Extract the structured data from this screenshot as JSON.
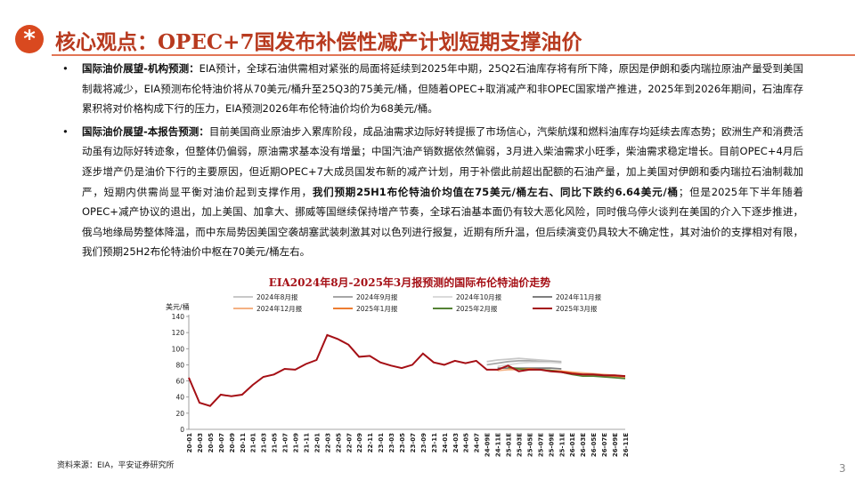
{
  "header": {
    "title": "核心观点：OPEC+7国发布补偿性减产计划短期支撑油价"
  },
  "bullets": [
    {
      "segments": [
        {
          "text": "国际油价展望-机构预测：",
          "bold": true
        },
        {
          "text": "EIA预计，全球石油供需相对紧张的局面将延续到2025年中期，25Q2石油库存将有所下降，原因是伊朗和委内瑞拉原油产量受到美国制裁将减少，EIA预测布伦特油价将从70美元/桶升至25Q3的75美元/桶，但随着OPEC+取消减产和非OPEC国家增产推进，2025年到2026年期间，石油库存累积将对价格构成下行的压力，EIA预测2026年布伦特油价均价为68美元/桶。",
          "bold": false
        }
      ]
    },
    {
      "segments": [
        {
          "text": "国际油价展望-本报告预测：",
          "bold": true
        },
        {
          "text": "目前美国商业原油步入累库阶段，成品油需求边际好转提振了市场信心，汽柴航煤和燃料油库存均延续去库态势；欧洲生产和消费活动虽有边际好转迹象，但整体仍偏弱，原油需求基本没有增量；中国汽油产销数据依然偏弱，3月进入柴油需求小旺季，柴油需求稳定增长。目前OPEC+4月后逐步增产仍是油价下行的主要原因，但近期OPEC+7大成员国发布新的减产计划，用于补偿此前超出配额的石油产量，加上美国对伊朗和委内瑞拉石油制裁加严，短期内供需尚显平衡对油价起到支撑作用，",
          "bold": false
        },
        {
          "text": "我们预期25H1布伦特油价均值在75美元/桶左右、同比下跌约6.64美元/桶",
          "bold": true
        },
        {
          "text": "；但是2025年下半年随着OPEC+减产协议的退出，加上美国、加拿大、挪威等国继续保持增产节奏，全球石油基本面仍有较大恶化风险，同时俄乌停火谈判在美国的介入下逐步推进，俄乌地缘局势整体降温，而中东局势因美国空袭胡塞武装刺激其对以色列进行报复，近期有所升温，但后续演变仍具较大不确定性，其对油价的支撑相对有限，我们预期25H2布伦特油价中枢在70美元/桶左右。",
          "bold": false
        }
      ]
    }
  ],
  "chart_data": {
    "type": "line",
    "title": "EIA2024年8月-2025年3月报预测的国际布伦特油价走势",
    "y_label": "美元/桶",
    "categories": [
      "20-01",
      "20-03",
      "20-05",
      "20-07",
      "20-09",
      "20-11",
      "21-01",
      "21-03",
      "21-05",
      "21-07",
      "21-09",
      "21-11",
      "22-01",
      "22-03",
      "22-05",
      "22-07",
      "22-09",
      "22-11",
      "23-01",
      "23-03",
      "23-05",
      "23-07",
      "23-09",
      "23-11",
      "24-01",
      "24-03",
      "24-05",
      "24-07",
      "24-09E",
      "24-11E",
      "25-01E",
      "25-03E",
      "25-05E",
      "25-07E",
      "25-09E",
      "25-11E",
      "26-01E",
      "26-03E",
      "26-05E",
      "26-07E",
      "26-09E",
      "26-11E"
    ],
    "ylim": [
      0,
      140
    ],
    "yticks": [
      0,
      20,
      40,
      60,
      80,
      100,
      120,
      140
    ],
    "series": [
      {
        "name": "2024年8月报",
        "color": "#c8c8c8",
        "values": [
          null,
          null,
          null,
          null,
          null,
          null,
          null,
          null,
          null,
          null,
          null,
          null,
          null,
          null,
          null,
          null,
          null,
          null,
          null,
          null,
          null,
          null,
          null,
          null,
          null,
          null,
          null,
          null,
          84,
          86,
          87,
          88,
          87,
          86,
          85,
          84,
          null,
          null,
          null,
          null,
          null,
          null
        ]
      },
      {
        "name": "2024年9月报",
        "color": "#a6a6a6",
        "values": [
          null,
          null,
          null,
          null,
          null,
          null,
          null,
          null,
          null,
          null,
          null,
          null,
          null,
          null,
          null,
          null,
          null,
          null,
          null,
          null,
          null,
          null,
          null,
          null,
          null,
          null,
          null,
          null,
          80,
          82,
          84,
          85,
          85,
          84,
          84,
          83,
          null,
          null,
          null,
          null,
          null,
          null
        ]
      },
      {
        "name": "2024年10月报",
        "color": "#dadada",
        "values": [
          null,
          null,
          null,
          null,
          null,
          null,
          null,
          null,
          null,
          null,
          null,
          null,
          null,
          null,
          null,
          null,
          null,
          null,
          null,
          null,
          null,
          null,
          null,
          null,
          null,
          null,
          null,
          null,
          null,
          78,
          80,
          82,
          83,
          83,
          83,
          82,
          null,
          null,
          null,
          null,
          null,
          null
        ]
      },
      {
        "name": "2024年11月报",
        "color": "#7f7f7f",
        "values": [
          null,
          null,
          null,
          null,
          null,
          null,
          null,
          null,
          null,
          null,
          null,
          null,
          null,
          null,
          null,
          null,
          null,
          null,
          null,
          null,
          null,
          null,
          null,
          null,
          null,
          null,
          null,
          null,
          null,
          76,
          76,
          76,
          76,
          76,
          76,
          75,
          null,
          null,
          null,
          null,
          null,
          null
        ]
      },
      {
        "name": "2024年12月报",
        "color": "#f4b183",
        "values": [
          null,
          null,
          null,
          null,
          null,
          null,
          null,
          null,
          null,
          null,
          null,
          null,
          null,
          null,
          null,
          null,
          null,
          null,
          null,
          null,
          null,
          null,
          null,
          null,
          null,
          null,
          null,
          null,
          null,
          73,
          74,
          74,
          74,
          74,
          73,
          72,
          71,
          70,
          69,
          68,
          67,
          66
        ]
      },
      {
        "name": "2025年1月报",
        "color": "#ed7d31",
        "values": [
          null,
          null,
          null,
          null,
          null,
          null,
          null,
          null,
          null,
          null,
          null,
          null,
          null,
          null,
          null,
          null,
          null,
          null,
          null,
          null,
          null,
          null,
          null,
          null,
          null,
          null,
          null,
          null,
          null,
          null,
          76,
          75,
          75,
          74,
          73,
          72,
          70,
          68,
          67,
          66,
          66,
          65
        ]
      },
      {
        "name": "2025年2月报",
        "color": "#548235",
        "values": [
          null,
          null,
          null,
          null,
          null,
          null,
          null,
          null,
          null,
          null,
          null,
          null,
          null,
          null,
          null,
          null,
          null,
          null,
          null,
          null,
          null,
          null,
          null,
          null,
          null,
          null,
          null,
          null,
          null,
          null,
          77,
          75,
          74,
          74,
          73,
          71,
          68,
          66,
          66,
          65,
          64,
          63
        ]
      },
      {
        "name": "2025年3月报",
        "color": "#a50f15",
        "values": [
          64,
          33,
          29,
          43,
          41,
          43,
          55,
          65,
          68,
          75,
          74,
          81,
          86,
          117,
          112,
          105,
          90,
          91,
          83,
          79,
          76,
          80,
          94,
          83,
          80,
          85,
          82,
          85,
          74,
          74,
          79,
          72,
          74,
          74,
          72,
          71,
          69,
          68,
          68,
          67,
          67,
          66
        ]
      }
    ]
  },
  "source": "资料来源：EIA，平安证券研究所",
  "page_number": "3"
}
